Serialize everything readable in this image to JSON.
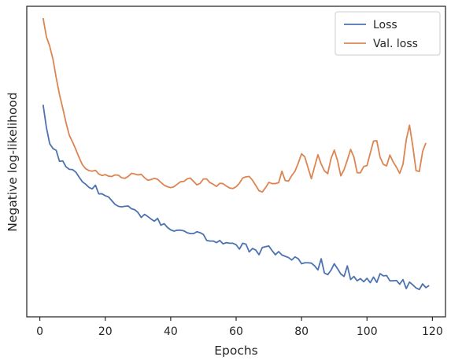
{
  "chart_data": {
    "type": "line",
    "title": "",
    "xlabel": "Epochs",
    "ylabel": "Negative log-likelihood",
    "xlim": [
      -4,
      124
    ],
    "ylim": [
      0.05,
      1.05
    ],
    "x_ticks": [
      0,
      20,
      40,
      60,
      80,
      100,
      120
    ],
    "y_tick_labels_shown": false,
    "grid": false,
    "legend": "top-right",
    "series": [
      {
        "name": "Loss",
        "color": "#4c72b0",
        "x_start": 1,
        "values": [
          0.733,
          0.66,
          0.608,
          0.592,
          0.586,
          0.551,
          0.552,
          0.533,
          0.525,
          0.524,
          0.516,
          0.5,
          0.485,
          0.477,
          0.467,
          0.462,
          0.474,
          0.446,
          0.446,
          0.44,
          0.436,
          0.424,
          0.412,
          0.406,
          0.404,
          0.406,
          0.407,
          0.398,
          0.395,
          0.386,
          0.37,
          0.38,
          0.373,
          0.365,
          0.358,
          0.367,
          0.345,
          0.35,
          0.338,
          0.33,
          0.326,
          0.329,
          0.329,
          0.327,
          0.321,
          0.318,
          0.318,
          0.324,
          0.321,
          0.315,
          0.296,
          0.294,
          0.294,
          0.289,
          0.296,
          0.285,
          0.289,
          0.287,
          0.287,
          0.282,
          0.268,
          0.287,
          0.284,
          0.259,
          0.27,
          0.265,
          0.25,
          0.273,
          0.276,
          0.278,
          0.263,
          0.25,
          0.26,
          0.249,
          0.245,
          0.241,
          0.233,
          0.243,
          0.237,
          0.221,
          0.224,
          0.224,
          0.223,
          0.214,
          0.201,
          0.237,
          0.191,
          0.186,
          0.2,
          0.221,
          0.205,
          0.188,
          0.18,
          0.214,
          0.17,
          0.18,
          0.166,
          0.173,
          0.163,
          0.174,
          0.16,
          0.178,
          0.161,
          0.189,
          0.182,
          0.183,
          0.166,
          0.166,
          0.167,
          0.155,
          0.17,
          0.141,
          0.162,
          0.153,
          0.143,
          0.138,
          0.156,
          0.144,
          0.151
        ]
      },
      {
        "name": "Val. loss",
        "color": "#dd8452",
        "x_start": 1,
        "values": [
          1.012,
          0.952,
          0.922,
          0.88,
          0.82,
          0.766,
          0.722,
          0.675,
          0.635,
          0.613,
          0.589,
          0.563,
          0.54,
          0.527,
          0.521,
          0.519,
          0.522,
          0.51,
          0.505,
          0.508,
          0.503,
          0.502,
          0.507,
          0.506,
          0.498,
          0.496,
          0.502,
          0.512,
          0.51,
          0.507,
          0.509,
          0.498,
          0.49,
          0.492,
          0.496,
          0.493,
          0.483,
          0.474,
          0.469,
          0.466,
          0.469,
          0.477,
          0.485,
          0.486,
          0.494,
          0.497,
          0.486,
          0.475,
          0.48,
          0.494,
          0.494,
          0.482,
          0.477,
          0.47,
          0.48,
          0.479,
          0.471,
          0.465,
          0.463,
          0.469,
          0.48,
          0.497,
          0.501,
          0.502,
          0.49,
          0.473,
          0.456,
          0.452,
          0.466,
          0.483,
          0.479,
          0.479,
          0.482,
          0.519,
          0.489,
          0.487,
          0.505,
          0.519,
          0.545,
          0.575,
          0.565,
          0.529,
          0.495,
          0.534,
          0.572,
          0.542,
          0.52,
          0.511,
          0.559,
          0.587,
          0.553,
          0.504,
          0.524,
          0.555,
          0.589,
          0.565,
          0.514,
          0.514,
          0.534,
          0.537,
          0.577,
          0.616,
          0.617,
          0.564,
          0.541,
          0.536,
          0.571,
          0.549,
          0.532,
          0.512,
          0.541,
          0.62,
          0.667,
          0.6,
          0.521,
          0.518,
          0.582,
          0.61
        ]
      }
    ]
  }
}
